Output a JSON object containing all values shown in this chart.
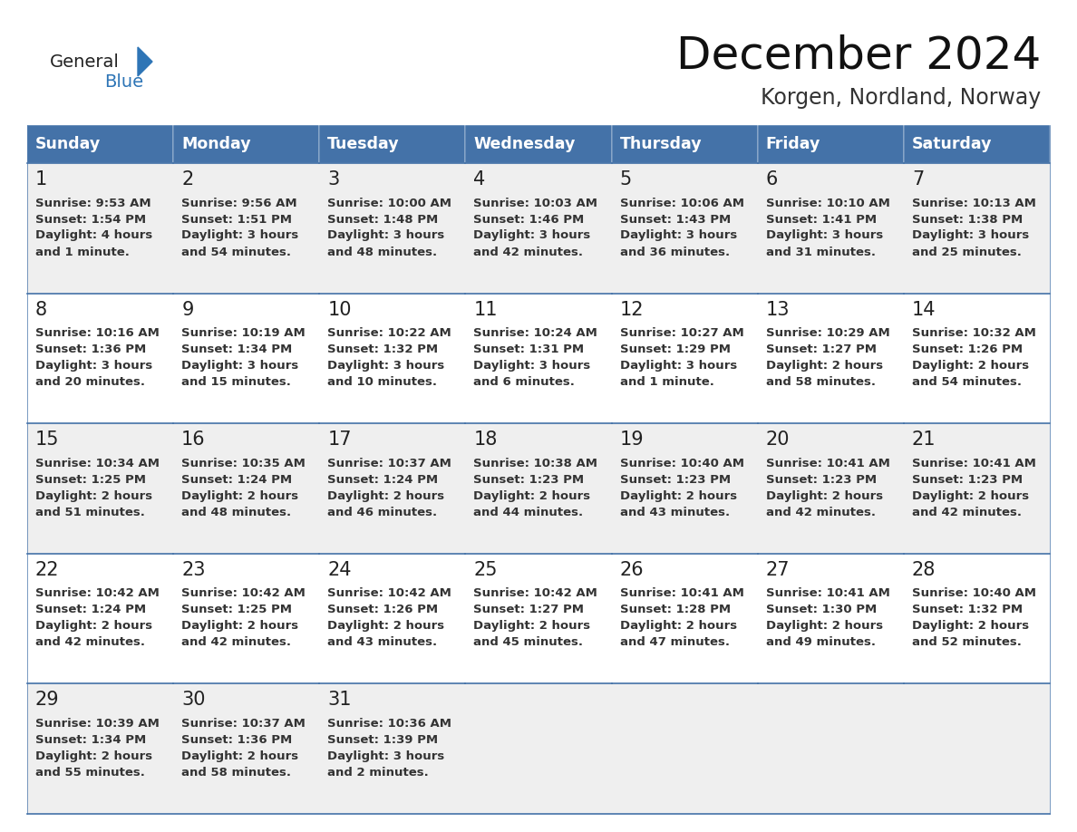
{
  "title": "December 2024",
  "subtitle": "Korgen, Nordland, Norway",
  "days_of_week": [
    "Sunday",
    "Monday",
    "Tuesday",
    "Wednesday",
    "Thursday",
    "Friday",
    "Saturday"
  ],
  "header_bg": "#4472A8",
  "header_text": "#FFFFFF",
  "row_bg_odd": "#EFEFEF",
  "row_bg_even": "#FFFFFF",
  "border_color": "#4472A8",
  "day_num_color": "#222222",
  "text_color": "#333333",
  "logo_general_color": "#222222",
  "logo_blue_color": "#2E75B6",
  "calendar_data": [
    [
      {
        "day": 1,
        "sunrise": "9:53 AM",
        "sunset": "1:54 PM",
        "daylight": "4 hours",
        "daylight2": "and 1 minute."
      },
      {
        "day": 2,
        "sunrise": "9:56 AM",
        "sunset": "1:51 PM",
        "daylight": "3 hours",
        "daylight2": "and 54 minutes."
      },
      {
        "day": 3,
        "sunrise": "10:00 AM",
        "sunset": "1:48 PM",
        "daylight": "3 hours",
        "daylight2": "and 48 minutes."
      },
      {
        "day": 4,
        "sunrise": "10:03 AM",
        "sunset": "1:46 PM",
        "daylight": "3 hours",
        "daylight2": "and 42 minutes."
      },
      {
        "day": 5,
        "sunrise": "10:06 AM",
        "sunset": "1:43 PM",
        "daylight": "3 hours",
        "daylight2": "and 36 minutes."
      },
      {
        "day": 6,
        "sunrise": "10:10 AM",
        "sunset": "1:41 PM",
        "daylight": "3 hours",
        "daylight2": "and 31 minutes."
      },
      {
        "day": 7,
        "sunrise": "10:13 AM",
        "sunset": "1:38 PM",
        "daylight": "3 hours",
        "daylight2": "and 25 minutes."
      }
    ],
    [
      {
        "day": 8,
        "sunrise": "10:16 AM",
        "sunset": "1:36 PM",
        "daylight": "3 hours",
        "daylight2": "and 20 minutes."
      },
      {
        "day": 9,
        "sunrise": "10:19 AM",
        "sunset": "1:34 PM",
        "daylight": "3 hours",
        "daylight2": "and 15 minutes."
      },
      {
        "day": 10,
        "sunrise": "10:22 AM",
        "sunset": "1:32 PM",
        "daylight": "3 hours",
        "daylight2": "and 10 minutes."
      },
      {
        "day": 11,
        "sunrise": "10:24 AM",
        "sunset": "1:31 PM",
        "daylight": "3 hours",
        "daylight2": "and 6 minutes."
      },
      {
        "day": 12,
        "sunrise": "10:27 AM",
        "sunset": "1:29 PM",
        "daylight": "3 hours",
        "daylight2": "and 1 minute."
      },
      {
        "day": 13,
        "sunrise": "10:29 AM",
        "sunset": "1:27 PM",
        "daylight": "2 hours",
        "daylight2": "and 58 minutes."
      },
      {
        "day": 14,
        "sunrise": "10:32 AM",
        "sunset": "1:26 PM",
        "daylight": "2 hours",
        "daylight2": "and 54 minutes."
      }
    ],
    [
      {
        "day": 15,
        "sunrise": "10:34 AM",
        "sunset": "1:25 PM",
        "daylight": "2 hours",
        "daylight2": "and 51 minutes."
      },
      {
        "day": 16,
        "sunrise": "10:35 AM",
        "sunset": "1:24 PM",
        "daylight": "2 hours",
        "daylight2": "and 48 minutes."
      },
      {
        "day": 17,
        "sunrise": "10:37 AM",
        "sunset": "1:24 PM",
        "daylight": "2 hours",
        "daylight2": "and 46 minutes."
      },
      {
        "day": 18,
        "sunrise": "10:38 AM",
        "sunset": "1:23 PM",
        "daylight": "2 hours",
        "daylight2": "and 44 minutes."
      },
      {
        "day": 19,
        "sunrise": "10:40 AM",
        "sunset": "1:23 PM",
        "daylight": "2 hours",
        "daylight2": "and 43 minutes."
      },
      {
        "day": 20,
        "sunrise": "10:41 AM",
        "sunset": "1:23 PM",
        "daylight": "2 hours",
        "daylight2": "and 42 minutes."
      },
      {
        "day": 21,
        "sunrise": "10:41 AM",
        "sunset": "1:23 PM",
        "daylight": "2 hours",
        "daylight2": "and 42 minutes."
      }
    ],
    [
      {
        "day": 22,
        "sunrise": "10:42 AM",
        "sunset": "1:24 PM",
        "daylight": "2 hours",
        "daylight2": "and 42 minutes."
      },
      {
        "day": 23,
        "sunrise": "10:42 AM",
        "sunset": "1:25 PM",
        "daylight": "2 hours",
        "daylight2": "and 42 minutes."
      },
      {
        "day": 24,
        "sunrise": "10:42 AM",
        "sunset": "1:26 PM",
        "daylight": "2 hours",
        "daylight2": "and 43 minutes."
      },
      {
        "day": 25,
        "sunrise": "10:42 AM",
        "sunset": "1:27 PM",
        "daylight": "2 hours",
        "daylight2": "and 45 minutes."
      },
      {
        "day": 26,
        "sunrise": "10:41 AM",
        "sunset": "1:28 PM",
        "daylight": "2 hours",
        "daylight2": "and 47 minutes."
      },
      {
        "day": 27,
        "sunrise": "10:41 AM",
        "sunset": "1:30 PM",
        "daylight": "2 hours",
        "daylight2": "and 49 minutes."
      },
      {
        "day": 28,
        "sunrise": "10:40 AM",
        "sunset": "1:32 PM",
        "daylight": "2 hours",
        "daylight2": "and 52 minutes."
      }
    ],
    [
      {
        "day": 29,
        "sunrise": "10:39 AM",
        "sunset": "1:34 PM",
        "daylight": "2 hours",
        "daylight2": "and 55 minutes."
      },
      {
        "day": 30,
        "sunrise": "10:37 AM",
        "sunset": "1:36 PM",
        "daylight": "2 hours",
        "daylight2": "and 58 minutes."
      },
      {
        "day": 31,
        "sunrise": "10:36 AM",
        "sunset": "1:39 PM",
        "daylight": "3 hours",
        "daylight2": "and 2 minutes."
      },
      null,
      null,
      null,
      null
    ]
  ]
}
